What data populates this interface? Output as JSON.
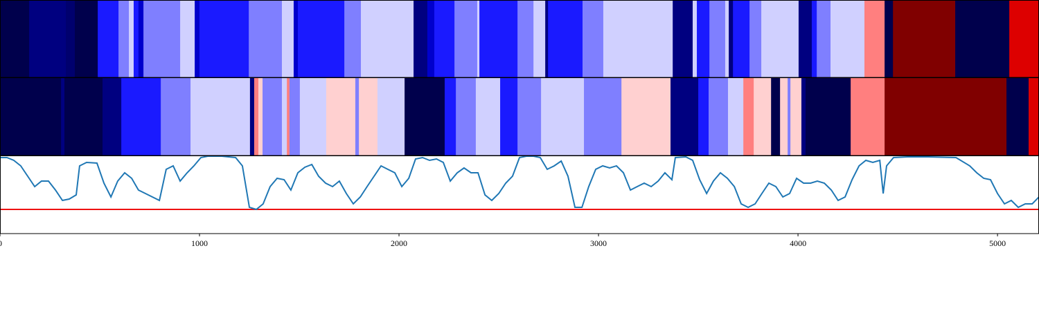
{
  "chart_data": [
    {
      "type": "strip",
      "xlim": [
        0,
        5208
      ],
      "bins": [
        0,
        146,
        330,
        375,
        490,
        594,
        646,
        670,
        694,
        719,
        903,
        976,
        1000,
        1247,
        1413,
        1472,
        1493,
        1726,
        1809,
        2073,
        2142,
        2177,
        2278,
        2392,
        2403,
        2594,
        2674,
        2733,
        2747,
        2920,
        3024,
        3372,
        3472,
        3493,
        3556,
        3635,
        3653,
        3674,
        3757,
        3816,
        4003,
        4069,
        4094,
        4163,
        4333,
        4434,
        4476,
        4788,
        5059,
        5208
      ],
      "colors": [
        "#00004c",
        "#000080",
        "#00006e",
        "#00004c",
        "#1a1aff",
        "#7f7fff",
        "#d0d0ff",
        "#1a1aff",
        "#0000cc",
        "#7f7fff",
        "#d0d0ff",
        "#0000cc",
        "#1a1aff",
        "#7f7fff",
        "#d0d0ff",
        "#0000cc",
        "#1a1aff",
        "#7f7fff",
        "#d0d0ff",
        "#000080",
        "#0000cc",
        "#1a1aff",
        "#7f7fff",
        "#d0d0ff",
        "#1a1aff",
        "#7f7fff",
        "#d0d0ff",
        "#000080",
        "#1a1aff",
        "#7f7fff",
        "#d0d0ff",
        "#000080",
        "#d0d0ff",
        "#1a1aff",
        "#7f7fff",
        "#d0d0ff",
        "#000080",
        "#1a1aff",
        "#7f7fff",
        "#d0d0ff",
        "#000080",
        "#1a1aff",
        "#7f7fff",
        "#d0d0ff",
        "#ff7f7f",
        "#00004c",
        "#800000",
        "#00004c",
        "#dd0000"
      ]
    },
    {
      "type": "strip",
      "xlim": [
        0,
        5208
      ],
      "bins": [
        0,
        306,
        323,
        514,
        608,
        806,
        955,
        1253,
        1274,
        1295,
        1316,
        1413,
        1438,
        1451,
        1503,
        1635,
        1781,
        1799,
        1892,
        2028,
        2229,
        2285,
        2385,
        2507,
        2594,
        2712,
        2927,
        3115,
        3361,
        3500,
        3552,
        3649,
        3726,
        3778,
        3865,
        3910,
        3948,
        3962,
        4017,
        4038,
        4264,
        4434,
        5045,
        5156,
        5208
      ],
      "colors": [
        "#00004c",
        "#000080",
        "#00004c",
        "#000080",
        "#1a1aff",
        "#7f7fff",
        "#d0d0ff",
        "#000080",
        "#ff7f7f",
        "#ffd0d0",
        "#7f7fff",
        "#d0d0ff",
        "#ff7f7f",
        "#7f7fff",
        "#d0d0ff",
        "#ffd0d0",
        "#7f7fff",
        "#ffd0d0",
        "#d0d0ff",
        "#00004c",
        "#1a1aff",
        "#7f7fff",
        "#d0d0ff",
        "#1a1aff",
        "#7f7fff",
        "#d0d0ff",
        "#7f7fff",
        "#ffd0d0",
        "#000080",
        "#1a1aff",
        "#7f7fff",
        "#d0d0ff",
        "#ff7f7f",
        "#ffd0d0",
        "#00004c",
        "#ffd0d0",
        "#7f7fff",
        "#ffd0d0",
        "#000080",
        "#00004c",
        "#ff7f7f",
        "#800000",
        "#00004c",
        "#dd0000"
      ]
    },
    {
      "type": "line",
      "xlim": [
        0,
        5208
      ],
      "ylim": [
        0,
        112
      ],
      "xticks": [
        0,
        1000,
        2000,
        3000,
        4000,
        5000
      ],
      "color": "#1f77b4",
      "hline": 35,
      "hline_color": "#ee1111",
      "x": [
        0,
        35,
        69,
        104,
        139,
        174,
        208,
        243,
        278,
        313,
        347,
        382,
        399,
        434,
        486,
        521,
        556,
        590,
        625,
        660,
        694,
        729,
        799,
        833,
        868,
        903,
        938,
        972,
        1007,
        1042,
        1111,
        1181,
        1215,
        1250,
        1285,
        1319,
        1354,
        1389,
        1424,
        1458,
        1493,
        1528,
        1563,
        1597,
        1632,
        1667,
        1701,
        1736,
        1771,
        1806,
        1840,
        1875,
        1910,
        1944,
        1979,
        2014,
        2049,
        2083,
        2118,
        2153,
        2188,
        2222,
        2257,
        2292,
        2326,
        2361,
        2396,
        2431,
        2465,
        2500,
        2535,
        2569,
        2604,
        2639,
        2674,
        2708,
        2743,
        2778,
        2813,
        2847,
        2882,
        2917,
        2951,
        2986,
        3021,
        3056,
        3090,
        3125,
        3160,
        3194,
        3229,
        3264,
        3299,
        3333,
        3368,
        3385,
        3438,
        3472,
        3507,
        3542,
        3576,
        3611,
        3646,
        3681,
        3715,
        3750,
        3785,
        3819,
        3854,
        3889,
        3924,
        3958,
        3993,
        4028,
        4063,
        4097,
        4132,
        4167,
        4201,
        4236,
        4271,
        4306,
        4340,
        4375,
        4410,
        4427,
        4444,
        4479,
        4549,
        4653,
        4792,
        4861,
        4896,
        4931,
        4965,
        5000,
        5035,
        5069,
        5104,
        5139,
        5174,
        5208
      ],
      "values": [
        110,
        110,
        106,
        98,
        83,
        68,
        76,
        76,
        63,
        48,
        50,
        56,
        98,
        103,
        102,
        73,
        53,
        76,
        88,
        80,
        63,
        58,
        48,
        93,
        98,
        76,
        88,
        98,
        110,
        112,
        112,
        110,
        98,
        38,
        35,
        43,
        68,
        80,
        78,
        63,
        88,
        96,
        100,
        83,
        73,
        68,
        76,
        58,
        43,
        53,
        68,
        83,
        98,
        93,
        88,
        68,
        80,
        108,
        110,
        106,
        108,
        103,
        76,
        88,
        95,
        88,
        88,
        56,
        48,
        58,
        73,
        83,
        110,
        112,
        112,
        110,
        93,
        98,
        105,
        83,
        38,
        38,
        68,
        93,
        98,
        95,
        98,
        88,
        63,
        68,
        73,
        68,
        76,
        88,
        78,
        110,
        111,
        106,
        78,
        58,
        76,
        88,
        80,
        68,
        43,
        38,
        43,
        58,
        73,
        68,
        53,
        58,
        80,
        73,
        73,
        76,
        73,
        63,
        48,
        53,
        78,
        98,
        106,
        103,
        106,
        58,
        98,
        110,
        111,
        111,
        110,
        98,
        88,
        80,
        78,
        58,
        43,
        48,
        38,
        43,
        43,
        53
      ]
    }
  ]
}
